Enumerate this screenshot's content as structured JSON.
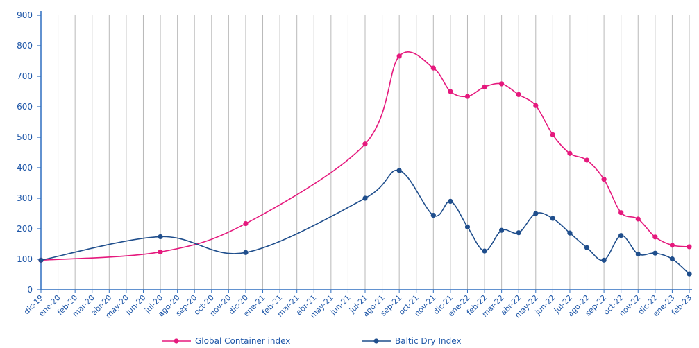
{
  "chart_data": {
    "type": "line",
    "title": "",
    "xlabel": "",
    "ylabel": "",
    "ylim": [
      0,
      900
    ],
    "yticks": [
      0,
      100,
      200,
      300,
      400,
      500,
      600,
      700,
      800,
      900
    ],
    "grid": true,
    "legend_position": "bottom",
    "categories": [
      "dic-19",
      "ene-20",
      "feb-20",
      "mar-20",
      "abr-20",
      "may-20",
      "jun-20",
      "jul-20",
      "ago-20",
      "sep-20",
      "oct-20",
      "nov-20",
      "dic-20",
      "ene-21",
      "feb-21",
      "mar-21",
      "abr-21",
      "may-21",
      "jun-21",
      "jul-21",
      "ago-21",
      "sep-21",
      "oct-21",
      "nov-21",
      "dic-21",
      "ene-22",
      "feb-22",
      "mar-22",
      "abr-22",
      "may-22",
      "jun-22",
      "jul-22",
      "ago-22",
      "sep-22",
      "oct-22",
      "nov-22",
      "dic-22",
      "ene-23",
      "feb-23"
    ],
    "series": [
      {
        "name": "Global Container index",
        "color": "#e5197d",
        "points": [
          [
            0,
            97
          ],
          [
            7,
            124
          ],
          [
            12,
            217
          ],
          [
            19,
            478
          ],
          [
            21,
            766
          ],
          [
            23,
            727
          ],
          [
            24,
            650
          ],
          [
            25,
            634
          ],
          [
            26,
            665
          ],
          [
            27,
            675
          ],
          [
            28,
            640
          ],
          [
            29,
            604
          ],
          [
            30,
            508
          ],
          [
            31,
            447
          ],
          [
            32,
            425
          ],
          [
            33,
            362
          ],
          [
            34,
            253
          ],
          [
            35,
            232
          ],
          [
            36,
            173
          ],
          [
            37,
            146
          ],
          [
            38,
            141
          ]
        ]
      },
      {
        "name": "Baltic Dry Index",
        "color": "#1f4e8c",
        "points": [
          [
            0,
            97
          ],
          [
            7,
            174
          ],
          [
            12,
            122
          ],
          [
            19,
            300
          ],
          [
            21,
            391
          ],
          [
            23,
            244
          ],
          [
            24,
            290
          ],
          [
            25,
            206
          ],
          [
            26,
            127
          ],
          [
            27,
            195
          ],
          [
            28,
            187
          ],
          [
            29,
            250
          ],
          [
            30,
            234
          ],
          [
            31,
            186
          ],
          [
            32,
            138
          ],
          [
            33,
            97
          ],
          [
            34,
            178
          ],
          [
            35,
            117
          ],
          [
            36,
            120
          ],
          [
            37,
            101
          ],
          [
            38,
            52
          ]
        ]
      }
    ]
  }
}
